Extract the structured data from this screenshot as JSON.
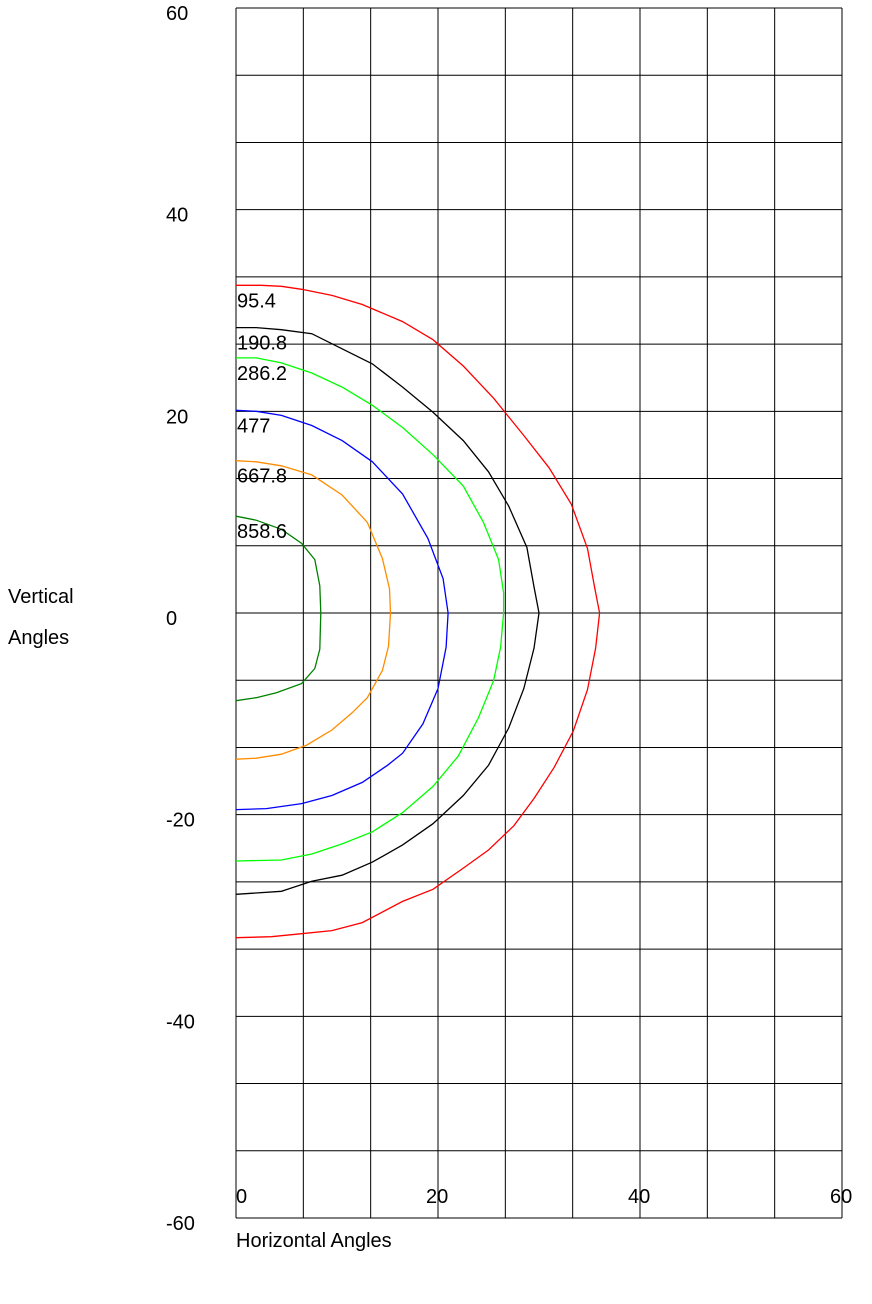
{
  "chart_data": {
    "type": "line",
    "title": "",
    "xlabel": "Horizontal Angles",
    "ylabel_lines": [
      "Vertical",
      "Angles"
    ],
    "xlim": [
      0,
      60
    ],
    "ylim": [
      -60,
      60
    ],
    "x_ticks": [
      0,
      20,
      40,
      60
    ],
    "y_ticks": [
      60,
      40,
      20,
      0,
      -20,
      -40,
      -60
    ],
    "x_tick_labels": [
      "0",
      "20",
      "40",
      "60"
    ],
    "y_tick_labels": [
      "60",
      "40",
      "20",
      "0",
      "-20",
      "-40",
      "-60"
    ],
    "grid": true,
    "grid_x_step": 6.667,
    "grid_y_step": 6.667,
    "series": [
      {
        "label": "95.4",
        "color": "#ff0000",
        "points": [
          [
            0,
            32.5
          ],
          [
            2.5,
            32.5
          ],
          [
            4.5,
            32.4
          ],
          [
            6.5,
            32.1
          ],
          [
            9.5,
            31.5
          ],
          [
            12.5,
            30.6
          ],
          [
            16.5,
            28.9
          ],
          [
            19.5,
            27.1
          ],
          [
            22.5,
            24.5
          ],
          [
            25.5,
            21.3
          ],
          [
            28.5,
            17.6
          ],
          [
            31,
            14.4
          ],
          [
            33.2,
            10.8
          ],
          [
            34.8,
            6.4
          ],
          [
            35.5,
            2.6
          ],
          [
            36,
            0
          ],
          [
            35.6,
            -3.5
          ],
          [
            34.8,
            -7.6
          ],
          [
            33.4,
            -11.7
          ],
          [
            31.5,
            -15.3
          ],
          [
            29.5,
            -18.4
          ],
          [
            27.5,
            -21.1
          ],
          [
            25,
            -23.5
          ],
          [
            22.5,
            -25.3
          ],
          [
            19.5,
            -27.4
          ],
          [
            16.5,
            -28.6
          ],
          [
            12.5,
            -30.7
          ],
          [
            9.5,
            -31.5
          ],
          [
            6.5,
            -31.8
          ],
          [
            3.5,
            -32.1
          ],
          [
            0,
            -32.2
          ]
        ]
      },
      {
        "label": "190.8",
        "color": "#000000",
        "points": [
          [
            0,
            28.3
          ],
          [
            2,
            28.3
          ],
          [
            4.5,
            28.1
          ],
          [
            7.5,
            27.7
          ],
          [
            10.5,
            26.2
          ],
          [
            13.5,
            24.7
          ],
          [
            16.5,
            22.4
          ],
          [
            19.5,
            19.9
          ],
          [
            22.5,
            17.1
          ],
          [
            25,
            14
          ],
          [
            27,
            10.6
          ],
          [
            28.8,
            6.5
          ],
          [
            29.5,
            2.6
          ],
          [
            30,
            0
          ],
          [
            29.5,
            -3.5
          ],
          [
            28.5,
            -7.5
          ],
          [
            27,
            -11.4
          ],
          [
            25,
            -15.1
          ],
          [
            22.5,
            -18.1
          ],
          [
            19.5,
            -20.9
          ],
          [
            16.5,
            -23
          ],
          [
            13.5,
            -24.7
          ],
          [
            10.5,
            -26
          ],
          [
            7.5,
            -26.6
          ],
          [
            4.5,
            -27.6
          ],
          [
            0,
            -27.9
          ]
        ]
      },
      {
        "label": "286.2",
        "color": "#00ff00",
        "points": [
          [
            0,
            25.3
          ],
          [
            2,
            25.3
          ],
          [
            4.5,
            24.8
          ],
          [
            7.5,
            23.8
          ],
          [
            10.5,
            22.4
          ],
          [
            13.5,
            20.6
          ],
          [
            16.5,
            18.4
          ],
          [
            19.5,
            15.7
          ],
          [
            22.5,
            12.6
          ],
          [
            24.5,
            9
          ],
          [
            26,
            5.3
          ],
          [
            26.5,
            2
          ],
          [
            26.5,
            0
          ],
          [
            26.2,
            -3.4
          ],
          [
            25.5,
            -6.7
          ],
          [
            24,
            -10.4
          ],
          [
            22,
            -14.2
          ],
          [
            19.5,
            -17.2
          ],
          [
            16.5,
            -19.8
          ],
          [
            13.5,
            -21.7
          ],
          [
            10.5,
            -22.9
          ],
          [
            7.5,
            -23.9
          ],
          [
            4.5,
            -24.5
          ],
          [
            0,
            -24.6
          ]
        ]
      },
      {
        "label": "477",
        "color": "#0000ff",
        "points": [
          [
            0,
            20.1
          ],
          [
            2,
            20
          ],
          [
            4.5,
            19.6
          ],
          [
            7.5,
            18.6
          ],
          [
            10.5,
            17.1
          ],
          [
            13.5,
            15
          ],
          [
            16.5,
            11.8
          ],
          [
            19,
            7.4
          ],
          [
            20.5,
            3.4
          ],
          [
            21,
            0
          ],
          [
            20.8,
            -3.4
          ],
          [
            20,
            -7.5
          ],
          [
            18.5,
            -11
          ],
          [
            16.5,
            -13.9
          ],
          [
            15,
            -15.1
          ],
          [
            12.5,
            -16.8
          ],
          [
            9.5,
            -18.1
          ],
          [
            6.5,
            -18.9
          ],
          [
            3,
            -19.4
          ],
          [
            0,
            -19.5
          ]
        ]
      },
      {
        "label": "667.8",
        "color": "#ff8c00",
        "points": [
          [
            0,
            15.1
          ],
          [
            2,
            15
          ],
          [
            4.5,
            14.6
          ],
          [
            7.5,
            13.7
          ],
          [
            10.5,
            11.7
          ],
          [
            13,
            9
          ],
          [
            14.5,
            5.4
          ],
          [
            15.2,
            2.4
          ],
          [
            15.3,
            0
          ],
          [
            15.1,
            -3.3
          ],
          [
            14.5,
            -5.7
          ],
          [
            13,
            -8.4
          ],
          [
            11.5,
            -9.9
          ],
          [
            9.5,
            -11.6
          ],
          [
            7,
            -13.1
          ],
          [
            4.5,
            -14
          ],
          [
            2,
            -14.4
          ],
          [
            0,
            -14.5
          ]
        ]
      },
      {
        "label": "858.6",
        "color": "#008000",
        "points": [
          [
            0,
            9.6
          ],
          [
            2,
            9.2
          ],
          [
            4.5,
            8.3
          ],
          [
            6.5,
            6.9
          ],
          [
            7.8,
            5.3
          ],
          [
            8.3,
            2.7
          ],
          [
            8.4,
            0
          ],
          [
            8.3,
            -3.6
          ],
          [
            7.8,
            -5.5
          ],
          [
            6.5,
            -7
          ],
          [
            4,
            -7.9
          ],
          [
            2,
            -8.4
          ],
          [
            0,
            -8.7
          ]
        ]
      }
    ]
  }
}
